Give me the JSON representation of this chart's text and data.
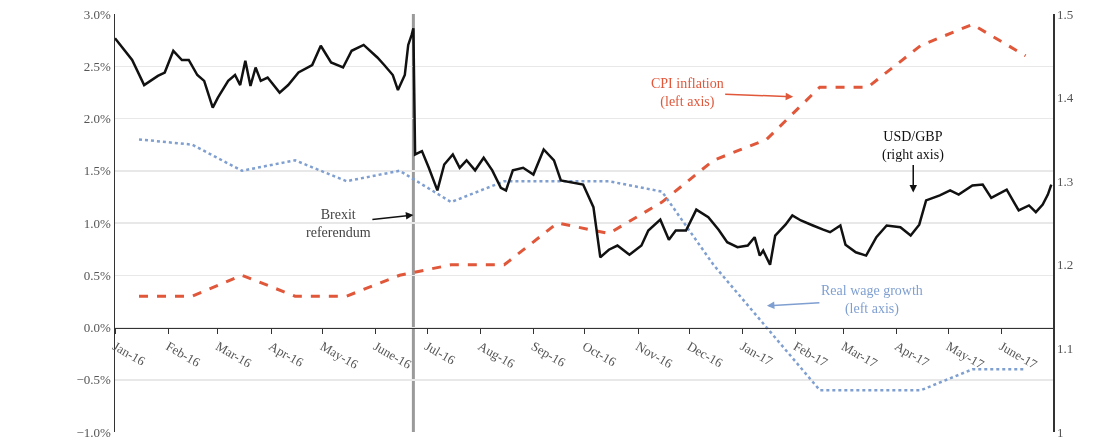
{
  "chart_data": {
    "type": "line",
    "xlim": [
      "2016-01-01",
      "2017-07-01"
    ],
    "xticks": [
      {
        "value": "2016-01-01",
        "label": "Jan-16"
      },
      {
        "value": "2016-02-01",
        "label": "Feb-16"
      },
      {
        "value": "2016-03-01",
        "label": "Mar-16"
      },
      {
        "value": "2016-04-01",
        "label": "Apr-16"
      },
      {
        "value": "2016-05-01",
        "label": "May-16"
      },
      {
        "value": "2016-06-01",
        "label": "June-16"
      },
      {
        "value": "2016-07-01",
        "label": "Jul-16"
      },
      {
        "value": "2016-08-01",
        "label": "Aug-16"
      },
      {
        "value": "2016-09-01",
        "label": "Sep-16"
      },
      {
        "value": "2016-10-01",
        "label": "Oct-16"
      },
      {
        "value": "2016-11-01",
        "label": "Nov-16"
      },
      {
        "value": "2016-12-01",
        "label": "Dec-16"
      },
      {
        "value": "2017-01-01",
        "label": "Jan-17"
      },
      {
        "value": "2017-02-01",
        "label": "Feb-17"
      },
      {
        "value": "2017-03-01",
        "label": "Mar-17"
      },
      {
        "value": "2017-04-01",
        "label": "Apr-17"
      },
      {
        "value": "2017-05-01",
        "label": "May-17"
      },
      {
        "value": "2017-06-01",
        "label": "June-17"
      }
    ],
    "ylim": [
      -1,
      3
    ],
    "yticks": [
      {
        "value": -1,
        "label": "−1.0%"
      },
      {
        "value": -0.5,
        "label": "−0.5%"
      },
      {
        "value": 0,
        "label": "0.0%"
      },
      {
        "value": 0.5,
        "label": "0.5%"
      },
      {
        "value": 1,
        "label": "1.0%"
      },
      {
        "value": 1.5,
        "label": "1.5%"
      },
      {
        "value": 2,
        "label": "2.0%"
      },
      {
        "value": 2.5,
        "label": "2.5%"
      },
      {
        "value": 3,
        "label": "3.0%"
      }
    ],
    "y2lim": [
      1,
      1.5
    ],
    "y2ticks": [
      1,
      1.1,
      1.2,
      1.3,
      1.4,
      1.5
    ],
    "grid": "y",
    "ref_lines": [
      {
        "axis": "x",
        "value": "2016-06-23",
        "label": "Brexit\nreferendum",
        "color": "#9a9a9a"
      }
    ],
    "series": [
      {
        "name": "USD/GBP\n(right axis)",
        "color": "#111111",
        "axis": "y2",
        "line_style": "solid",
        "x": [
          "2016-01-01",
          "2016-01-11",
          "2016-01-18",
          "2016-01-26",
          "2016-01-30",
          "2016-02-04",
          "2016-02-09",
          "2016-02-13",
          "2016-02-18",
          "2016-02-22",
          "2016-02-27",
          "2016-03-01",
          "2016-03-07",
          "2016-03-11",
          "2016-03-14",
          "2016-03-17",
          "2016-03-20",
          "2016-03-23",
          "2016-03-26",
          "2016-03-30",
          "2016-04-06",
          "2016-04-11",
          "2016-04-17",
          "2016-04-25",
          "2016-04-30",
          "2016-05-06",
          "2016-05-13",
          "2016-05-18",
          "2016-05-25",
          "2016-06-02",
          "2016-06-06",
          "2016-06-11",
          "2016-06-14",
          "2016-06-18",
          "2016-06-20",
          "2016-06-22",
          "2016-06-23",
          "2016-06-24",
          "2016-06-28",
          "2016-07-02",
          "2016-07-07",
          "2016-07-11",
          "2016-07-16",
          "2016-07-20",
          "2016-07-24",
          "2016-07-29",
          "2016-08-03",
          "2016-08-08",
          "2016-08-13",
          "2016-08-16",
          "2016-08-20",
          "2016-08-26",
          "2016-09-01",
          "2016-09-07",
          "2016-09-13",
          "2016-09-17",
          "2016-09-30",
          "2016-10-06",
          "2016-10-10",
          "2016-10-15",
          "2016-10-20",
          "2016-10-27",
          "2016-11-03",
          "2016-11-07",
          "2016-11-14",
          "2016-11-19",
          "2016-11-23",
          "2016-11-29",
          "2016-12-05",
          "2016-12-12",
          "2016-12-18",
          "2016-12-23",
          "2016-12-29",
          "2017-01-04",
          "2017-01-08",
          "2017-01-11",
          "2017-01-13",
          "2017-01-17",
          "2017-01-20",
          "2017-01-26",
          "2017-01-30",
          "2017-02-04",
          "2017-02-11",
          "2017-02-17",
          "2017-02-21",
          "2017-02-27",
          "2017-03-02",
          "2017-03-08",
          "2017-03-14",
          "2017-03-20",
          "2017-03-26",
          "2017-04-03",
          "2017-04-09",
          "2017-04-14",
          "2017-04-18",
          "2017-04-26",
          "2017-05-02",
          "2017-05-07",
          "2017-05-15",
          "2017-05-21",
          "2017-05-26",
          "2017-06-04",
          "2017-06-11",
          "2017-06-17",
          "2017-06-21",
          "2017-06-25",
          "2017-06-28",
          "2017-06-30"
        ],
        "values": [
          1.471,
          1.445,
          1.415,
          1.426,
          1.43,
          1.456,
          1.445,
          1.445,
          1.427,
          1.42,
          1.388,
          1.4,
          1.42,
          1.427,
          1.415,
          1.444,
          1.414,
          1.436,
          1.42,
          1.424,
          1.406,
          1.415,
          1.43,
          1.439,
          1.462,
          1.442,
          1.436,
          1.456,
          1.463,
          1.448,
          1.439,
          1.427,
          1.409,
          1.427,
          1.463,
          1.475,
          1.483,
          1.332,
          1.336,
          1.316,
          1.289,
          1.32,
          1.332,
          1.316,
          1.325,
          1.313,
          1.328,
          1.313,
          1.292,
          1.289,
          1.313,
          1.316,
          1.308,
          1.338,
          1.325,
          1.301,
          1.296,
          1.269,
          1.209,
          1.218,
          1.223,
          1.212,
          1.223,
          1.241,
          1.254,
          1.23,
          1.241,
          1.241,
          1.266,
          1.257,
          1.242,
          1.227,
          1.221,
          1.223,
          1.233,
          1.211,
          1.217,
          1.2,
          1.235,
          1.248,
          1.259,
          1.253,
          1.247,
          1.242,
          1.239,
          1.247,
          1.224,
          1.215,
          1.211,
          1.233,
          1.247,
          1.245,
          1.235,
          1.248,
          1.277,
          1.283,
          1.289,
          1.284,
          1.295,
          1.296,
          1.28,
          1.29,
          1.265,
          1.271,
          1.263,
          1.272,
          1.284,
          1.296
        ]
      },
      {
        "name": "CPI inflation\n(left axis)",
        "color": "#e0573a",
        "line_style": "dashed",
        "x": [
          "2016-01-15",
          "2016-02-15",
          "2016-03-15",
          "2016-04-15",
          "2016-05-15",
          "2016-06-15",
          "2016-07-15",
          "2016-08-15",
          "2016-09-15",
          "2016-10-15",
          "2016-11-15",
          "2016-12-15",
          "2017-01-15",
          "2017-02-15",
          "2017-03-15",
          "2017-04-15",
          "2017-05-15",
          "2017-06-15"
        ],
        "values": [
          0.3,
          0.3,
          0.5,
          0.3,
          0.3,
          0.5,
          0.6,
          0.6,
          1.0,
          0.9,
          1.2,
          1.6,
          1.8,
          2.3,
          2.3,
          2.7,
          2.9,
          2.6
        ]
      },
      {
        "name": "Real wage growth\n(left axis)",
        "color": "#7f9fd0",
        "line_style": "dotted",
        "x": [
          "2016-01-15",
          "2016-02-15",
          "2016-03-15",
          "2016-04-15",
          "2016-05-15",
          "2016-06-15",
          "2016-07-15",
          "2016-08-15",
          "2016-09-15",
          "2016-10-15",
          "2016-11-15",
          "2016-12-15",
          "2017-01-15",
          "2017-02-15",
          "2017-03-15",
          "2017-04-15",
          "2017-05-15",
          "2017-06-15"
        ],
        "values": [
          1.8,
          1.75,
          1.5,
          1.6,
          1.4,
          1.5,
          1.2,
          1.4,
          1.4,
          1.4,
          1.3,
          0.6,
          0.0,
          -0.6,
          -0.6,
          -0.6,
          -0.4,
          -0.4
        ]
      }
    ]
  }
}
